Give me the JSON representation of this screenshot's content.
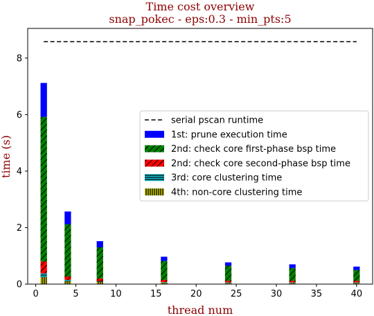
{
  "chart_data": {
    "type": "bar",
    "stacked": true,
    "title": "Time cost overview",
    "subtitle": "snap_pokec - eps:0.3 - min_pts:5",
    "xlabel": "thread num",
    "ylabel": "time (s)",
    "xlim": [
      -1,
      42
    ],
    "ylim": [
      0,
      9.05
    ],
    "xticks": [
      0,
      5,
      10,
      15,
      20,
      25,
      30,
      35,
      40
    ],
    "yticks": [
      0,
      2,
      4,
      6,
      8
    ],
    "x": [
      1,
      4,
      8,
      16,
      24,
      32,
      40
    ],
    "bar_width": 0.8,
    "legend_position": "center-right",
    "reference_line": {
      "name": "serial pscan runtime",
      "value": 8.58,
      "x_range": [
        1,
        40
      ],
      "style": "dashed",
      "color": "#000000"
    },
    "series": [
      {
        "name": "4th: non-core clustering time",
        "color": "#bfbf00",
        "hatch": "vertical",
        "values": [
          0.25,
          0.1,
          0.08,
          0.05,
          0.04,
          0.04,
          0.04
        ]
      },
      {
        "name": "3rd: core clustering time",
        "color": "#17becf",
        "hatch": "horizontal",
        "values": [
          0.13,
          0.05,
          0.03,
          0.02,
          0.02,
          0.02,
          0.02
        ]
      },
      {
        "name": "2nd: check core second-phase bsp time",
        "color": "#ff0000",
        "hatch": "diagonal",
        "values": [
          0.42,
          0.12,
          0.09,
          0.08,
          0.06,
          0.06,
          0.06
        ]
      },
      {
        "name": "2nd: check core first-phase bsp time",
        "color": "#008000",
        "hatch": "diagonal",
        "values": [
          5.12,
          1.85,
          1.1,
          0.67,
          0.53,
          0.45,
          0.38
        ]
      },
      {
        "name": "1st: prune execution time",
        "color": "#0000ff",
        "hatch": "none",
        "values": [
          1.2,
          0.45,
          0.22,
          0.15,
          0.12,
          0.13,
          0.12
        ]
      }
    ],
    "legend_order": [
      "serial pscan runtime",
      "1st: prune execution time",
      "2nd: check core first-phase bsp time",
      "2nd: check core second-phase bsp time",
      "3rd: core clustering time",
      "4th: non-core clustering time"
    ]
  }
}
